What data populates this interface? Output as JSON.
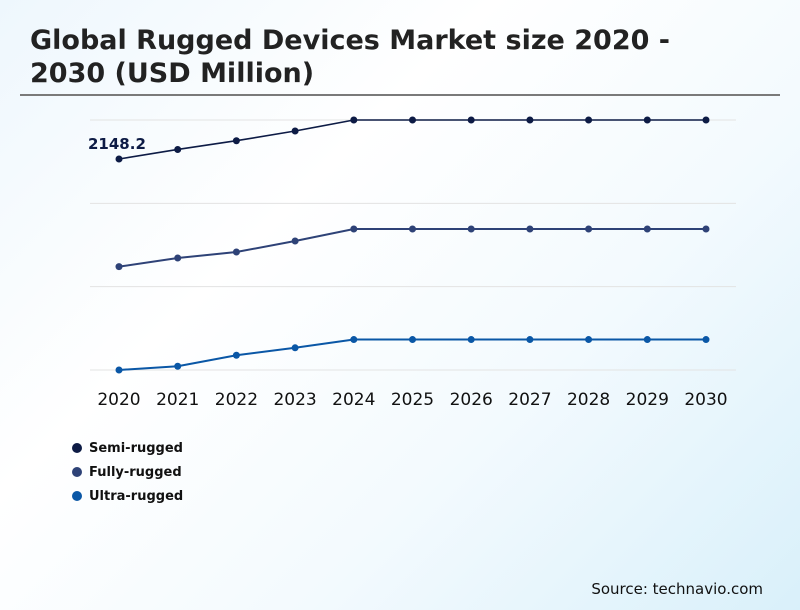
{
  "title": "Global Rugged Devices Market size 2020 - 2030 (USD Million)",
  "source": "Source: technavio.com",
  "chart_data": {
    "type": "line",
    "title": "Global Rugged Devices Market size 2020 - 2030 (USD Million)",
    "xlabel": "",
    "ylabel": "",
    "categories": [
      "2020",
      "2021",
      "2022",
      "2023",
      "2024",
      "2025",
      "2026",
      "2027",
      "2028",
      "2029",
      "2030"
    ],
    "ylim": [
      0,
      2545
    ],
    "grid": true,
    "legend": "bottom-left",
    "annotations": [
      {
        "series": "Semi-rugged",
        "x": "2020",
        "text": "2148.2"
      }
    ],
    "series": [
      {
        "name": "Semi-rugged",
        "color": "#0d1b45",
        "values": [
          2148.2,
          2245,
          2334,
          2433,
          2545,
          2545,
          2545,
          2545,
          2545,
          2545,
          2545
        ]
      },
      {
        "name": "Fully-rugged",
        "color": "#2e4277",
        "values": [
          1052,
          1140,
          1201,
          1313,
          1435,
          1435,
          1435,
          1435,
          1435,
          1435,
          1435
        ]
      },
      {
        "name": "Ultra-rugged",
        "color": "#0a57a6",
        "values": [
          0,
          38,
          150,
          226,
          310,
          310,
          310,
          310,
          310,
          310,
          310
        ]
      }
    ]
  }
}
